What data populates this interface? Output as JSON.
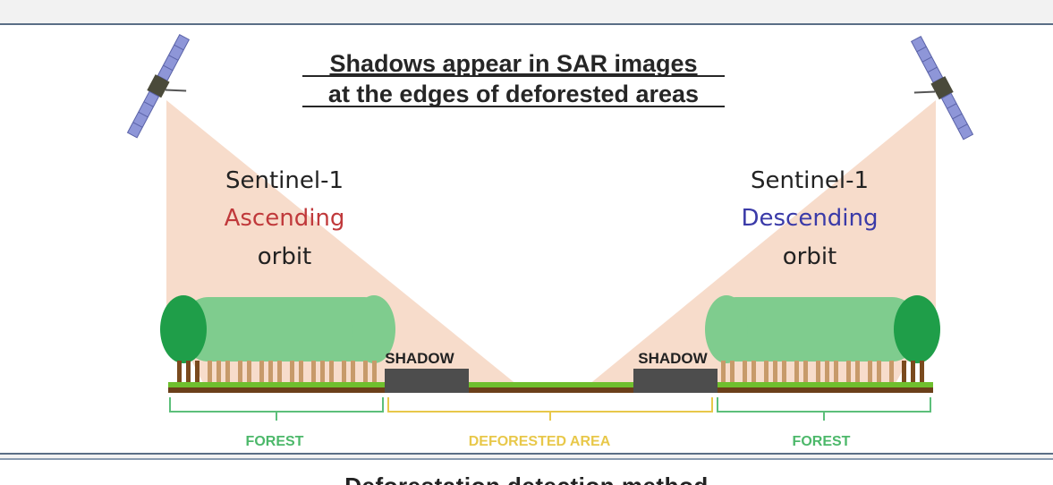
{
  "diagram": {
    "title_line1": "Shadows appear in SAR images",
    "title_line2": "at the edges of deforested areas",
    "left_orbit": {
      "satellite": "Sentinel-1",
      "direction": "Ascending",
      "suffix": "orbit",
      "color": "#c0393b"
    },
    "right_orbit": {
      "satellite": "Sentinel-1",
      "direction": "Descending",
      "suffix": "orbit",
      "color": "#3a3aa8"
    },
    "shadow_label_left": "SHADOW",
    "shadow_label_right": "SHADOW",
    "region_labels": {
      "forest_left": "FOREST",
      "deforested": "DEFORESTED AREA",
      "forest_right": "FOREST"
    },
    "colors": {
      "beam": "#f6d6c2",
      "forest_light": "#7fcc8e",
      "forest_dark": "#1f9e49",
      "trunk": "#7a4a1e",
      "ground_green": "#6fbf2e",
      "ground_brown": "#6b3f1a",
      "shadow": "#4d4d4d",
      "forest_bracket": "#5cbf7a",
      "deforested_bracket": "#e8c84a"
    }
  },
  "next_section": {
    "title": "Deforestation detection method"
  }
}
